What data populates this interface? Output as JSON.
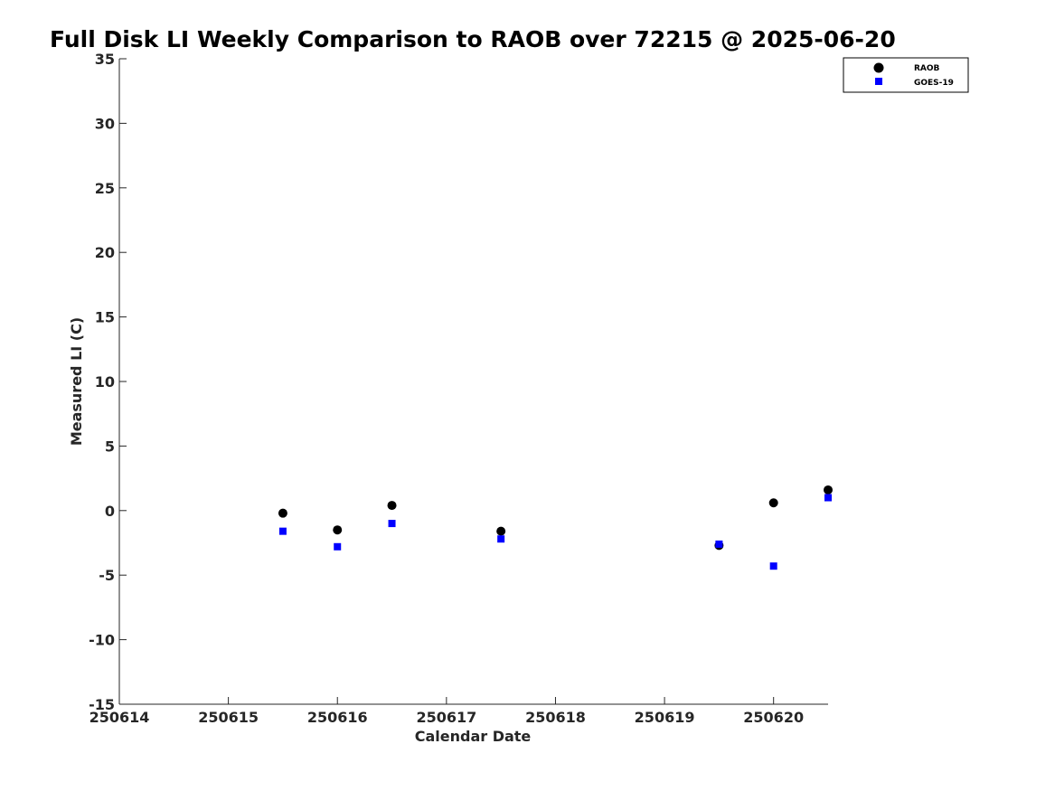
{
  "chart_data": {
    "type": "scatter",
    "title": "Full Disk LI Weekly Comparison to RAOB over 72215 @ 2025-06-20",
    "xlabel": "Calendar Date",
    "ylabel": "Measured LI (C)",
    "xlim": [
      250614,
      250620.5
    ],
    "ylim": [
      -15,
      35
    ],
    "xticks": [
      250614,
      250615,
      250616,
      250617,
      250618,
      250619,
      250620
    ],
    "xtick_labels": [
      "250614",
      "250615",
      "250616",
      "250617",
      "250618",
      "250619",
      "250620"
    ],
    "yticks": [
      -15,
      -10,
      -5,
      0,
      5,
      10,
      15,
      20,
      25,
      30,
      35
    ],
    "ytick_labels": [
      "-15",
      "-10",
      "-5",
      "0",
      "5",
      "10",
      "15",
      "20",
      "25",
      "30",
      "35"
    ],
    "grid": false,
    "legend_position": "top-right",
    "series": [
      {
        "name": "RAOB",
        "marker": "circle",
        "color": "#000000",
        "x": [
          250615.5,
          250616.0,
          250616.5,
          250617.5,
          250619.5,
          250620.0,
          250620.5
        ],
        "y": [
          -0.2,
          -1.5,
          0.4,
          -1.6,
          -2.7,
          0.6,
          1.6
        ]
      },
      {
        "name": "GOES-19",
        "marker": "square",
        "color": "#0000ff",
        "x": [
          250615.5,
          250616.0,
          250616.5,
          250617.5,
          250619.5,
          250620.0,
          250620.5
        ],
        "y": [
          -1.6,
          -2.8,
          -1.0,
          -2.2,
          -2.6,
          -4.3,
          1.0
        ]
      }
    ]
  }
}
